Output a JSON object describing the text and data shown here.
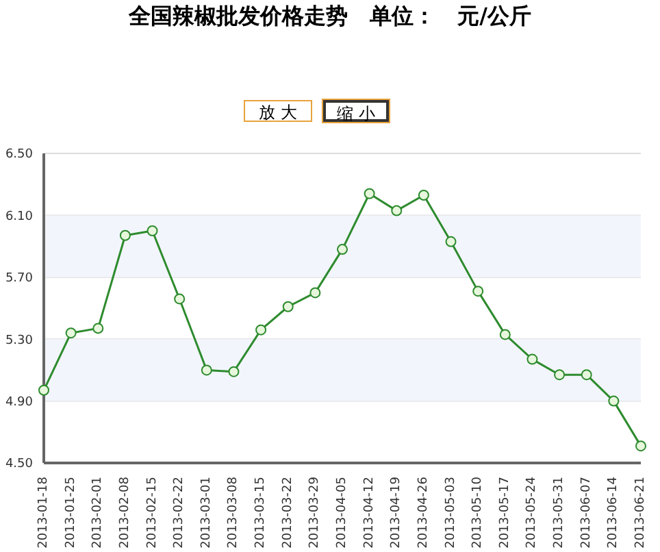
{
  "chart_data": {
    "type": "line",
    "title": "全国辣椒批发价格走势　单位：　元/公斤",
    "annotations": [
      "放 大",
      "缩 小"
    ],
    "categories": [
      "2013-01-18",
      "2013-01-25",
      "2013-02-01",
      "2013-02-08",
      "2013-02-15",
      "2013-02-22",
      "2013-03-01",
      "2013-03-08",
      "2013-03-15",
      "2013-03-22",
      "2013-03-29",
      "2013-04-05",
      "2013-04-12",
      "2013-04-19",
      "2013-04-26",
      "2013-05-03",
      "2013-05-10",
      "2013-05-17",
      "2013-05-24",
      "2013-05-31",
      "2013-06-07",
      "2013-06-14",
      "2013-06-21"
    ],
    "series": [
      {
        "color": "#2e8b2e",
        "values": [
          4.97,
          5.34,
          5.37,
          5.97,
          6.0,
          5.56,
          5.1,
          5.09,
          5.36,
          5.51,
          5.6,
          5.88,
          6.24,
          6.13,
          6.23,
          5.93,
          5.61,
          5.33,
          5.17,
          5.07,
          5.07,
          4.9,
          4.61
        ]
      }
    ],
    "ylim": [
      4.5,
      6.5
    ],
    "yticks": [
      {
        "value": 4.5,
        "label": "4.50"
      },
      {
        "value": 4.9,
        "label": "4.90"
      },
      {
        "value": 5.3,
        "label": "5.30"
      },
      {
        "value": 5.7,
        "label": "5.70"
      },
      {
        "value": 6.1,
        "label": "6.10"
      },
      {
        "value": 6.5,
        "label": "6.50"
      }
    ],
    "bands": [
      {
        "axis": "y",
        "from": 4.9,
        "to": 5.3,
        "color": "#f2f6fc"
      },
      {
        "axis": "y",
        "from": 5.7,
        "to": 6.1,
        "color": "#f2f6fc"
      }
    ],
    "grid": "y",
    "marker": "circle",
    "line_style": "solid"
  }
}
